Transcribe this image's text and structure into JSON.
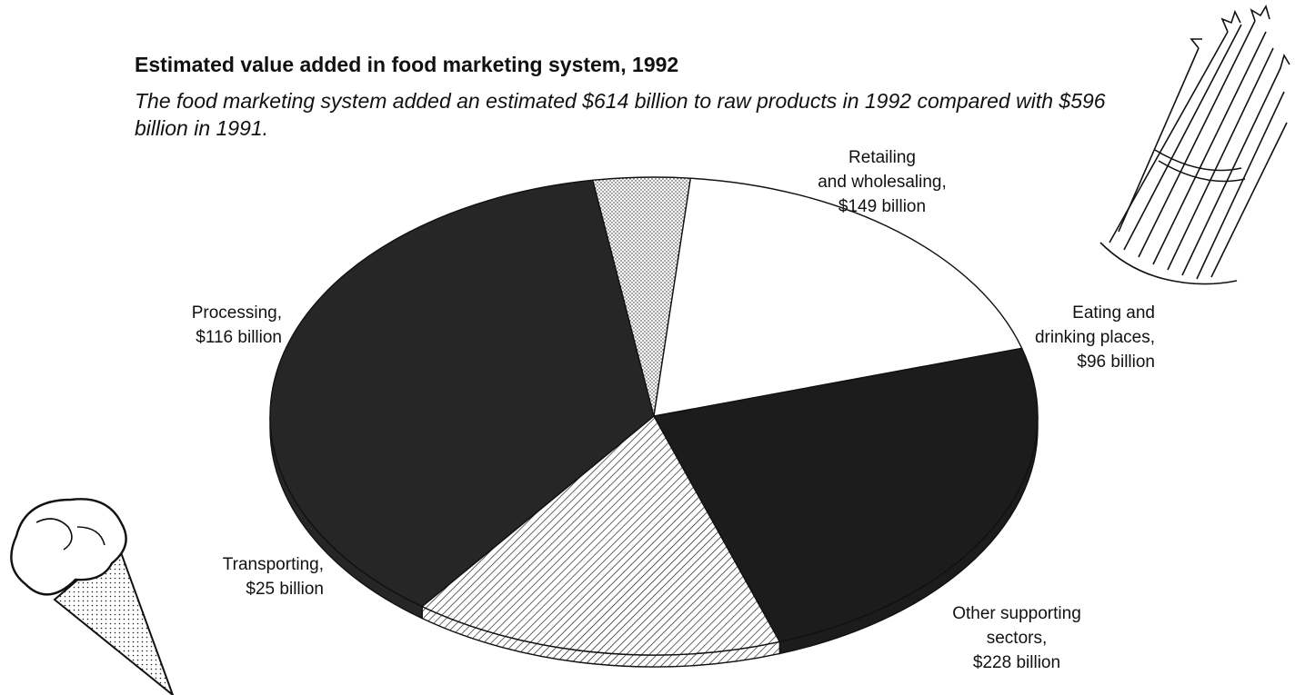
{
  "chart_data": {
    "type": "pie",
    "title": "Estimated value added in food marketing system, 1992",
    "subtitle": "The food marketing system added an estimated $614 billion to raw products in 1992 compared with $596 billion in 1991.",
    "unit": "billion dollars",
    "slices": [
      {
        "name": "Retailing and wholesaling",
        "value": 149,
        "label_lines": [
          "Retailing",
          "and wholesaling,",
          "$149 billion"
        ],
        "fill": "dark",
        "color": "#1c1c1c"
      },
      {
        "name": "Eating and drinking places",
        "value": 96,
        "label_lines": [
          "Eating and",
          "drinking places,",
          "$96 billion"
        ],
        "fill": "hatch",
        "color": "#ffffff"
      },
      {
        "name": "Other supporting sectors",
        "value": 228,
        "label_lines": [
          "Other supporting",
          "sectors,",
          "$228 billion"
        ],
        "fill": "dark",
        "color": "#262626"
      },
      {
        "name": "Transporting",
        "value": 25,
        "label_lines": [
          "Transporting,",
          "$25 billion"
        ],
        "fill": "dots",
        "color": "#ffffff"
      },
      {
        "name": "Processing",
        "value": 116,
        "label_lines": [
          "Processing,",
          "$116 billion"
        ],
        "fill": "white",
        "color": "#ffffff"
      }
    ]
  },
  "decorations": {
    "top_right": "asparagus-bundle-drawing",
    "bottom_left": "ice-cream-cone-drawing"
  }
}
